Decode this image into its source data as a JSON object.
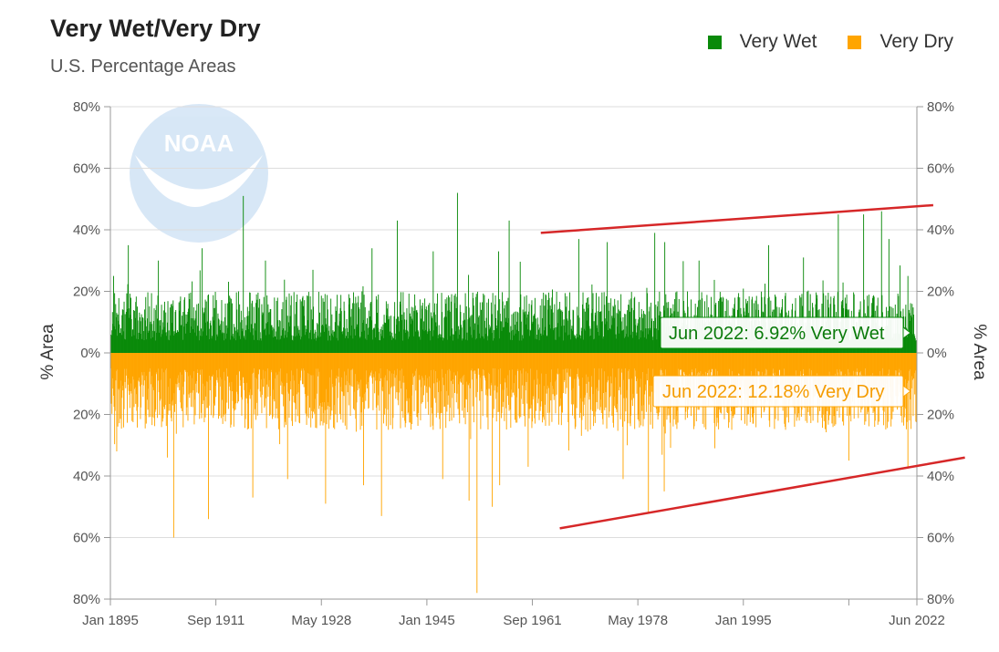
{
  "header": {
    "title": "Very Wet/Very Dry",
    "subtitle": "U.S. Percentage Areas"
  },
  "legend": {
    "wet_label": "Very Wet",
    "dry_label": "Very Dry"
  },
  "colors": {
    "wet": "#0a8a0a",
    "dry": "#ffa500",
    "trend": "#d62728",
    "grid": "#dddddd",
    "axis": "#999999"
  },
  "logo_text": "NOAA",
  "tooltips": {
    "wet": "Jun 2022: 6.92% Very Wet",
    "dry": "Jun 2022: 12.18% Very Dry"
  },
  "chart_data": {
    "type": "bar",
    "title": "Very Wet/Very Dry",
    "subtitle": "U.S. Percentage Areas",
    "ylabel_left": "% Area",
    "ylabel_right": "% Area",
    "ylim": [
      -80,
      80
    ],
    "y_ticks": [
      80,
      60,
      40,
      20,
      0,
      -20,
      -40,
      -60,
      -80
    ],
    "y_tick_labels": [
      "80%",
      "60%",
      "40%",
      "20%",
      "0%",
      "20%",
      "40%",
      "60%",
      "80%"
    ],
    "x_range": [
      1895.0,
      2022.417
    ],
    "x_ticks": [
      1895.0,
      1911.667,
      1928.333,
      1945.0,
      1961.667,
      1978.333,
      1995.0,
      2011.667,
      2022.417
    ],
    "x_tick_labels": [
      "Jan 1895",
      "Sep 1911",
      "May 1928",
      "Jan 1945",
      "Sep 1961",
      "May 1978",
      "Jan 1995",
      "",
      "Jun 2022"
    ],
    "series": [
      {
        "name": "Very Wet",
        "direction": "up",
        "typical": [
          4,
          20
        ],
        "spikes": [
          [
            1895.5,
            25
          ],
          [
            1897.8,
            35
          ],
          [
            1902.6,
            30
          ],
          [
            1909.5,
            34
          ],
          [
            1916.0,
            51
          ],
          [
            1919.5,
            30
          ],
          [
            1927.0,
            27
          ],
          [
            1936.3,
            34
          ],
          [
            1940.3,
            43
          ],
          [
            1946.0,
            33
          ],
          [
            1949.8,
            52
          ],
          [
            1956.3,
            33
          ],
          [
            1958.0,
            43
          ],
          [
            1969.0,
            37
          ],
          [
            1973.5,
            36
          ],
          [
            1981.0,
            39
          ],
          [
            1982.6,
            36
          ],
          [
            1988.0,
            30
          ],
          [
            1999.0,
            35
          ],
          [
            2004.5,
            31
          ],
          [
            2010.0,
            45
          ],
          [
            2014.0,
            45
          ],
          [
            2016.8,
            46
          ],
          [
            2018.0,
            37
          ],
          [
            2021.0,
            25
          ],
          [
            2022.417,
            6.92
          ]
        ]
      },
      {
        "name": "Very Dry",
        "direction": "down",
        "typical": [
          5,
          25
        ],
        "spikes": [
          [
            1896.0,
            -32
          ],
          [
            1904.0,
            -34
          ],
          [
            1905.0,
            -60
          ],
          [
            1910.5,
            -54
          ],
          [
            1917.5,
            -47
          ],
          [
            1923.0,
            -41
          ],
          [
            1929.0,
            -49
          ],
          [
            1935.0,
            -43
          ],
          [
            1937.8,
            -53
          ],
          [
            1947.5,
            -41
          ],
          [
            1951.7,
            -48
          ],
          [
            1952.9,
            -78
          ],
          [
            1955.3,
            -50
          ],
          [
            1956.5,
            -43
          ],
          [
            1961.0,
            -37
          ],
          [
            1976.0,
            -41
          ],
          [
            1980.0,
            -52
          ],
          [
            1982.5,
            -45
          ],
          [
            1990.5,
            -31
          ],
          [
            2011.7,
            -35
          ],
          [
            2021.0,
            -37
          ],
          [
            2022.417,
            -12.18
          ]
        ]
      }
    ],
    "trend_lines": [
      {
        "name": "wet-trend",
        "x": [
          1963.0,
          2025.0
        ],
        "y": [
          39,
          48
        ]
      },
      {
        "name": "dry-trend",
        "x": [
          1966.0,
          2030.0
        ],
        "y": [
          -57,
          -34
        ]
      }
    ],
    "highlighted": {
      "label": "Jun 2022",
      "wet": 6.92,
      "dry": -12.18
    }
  }
}
